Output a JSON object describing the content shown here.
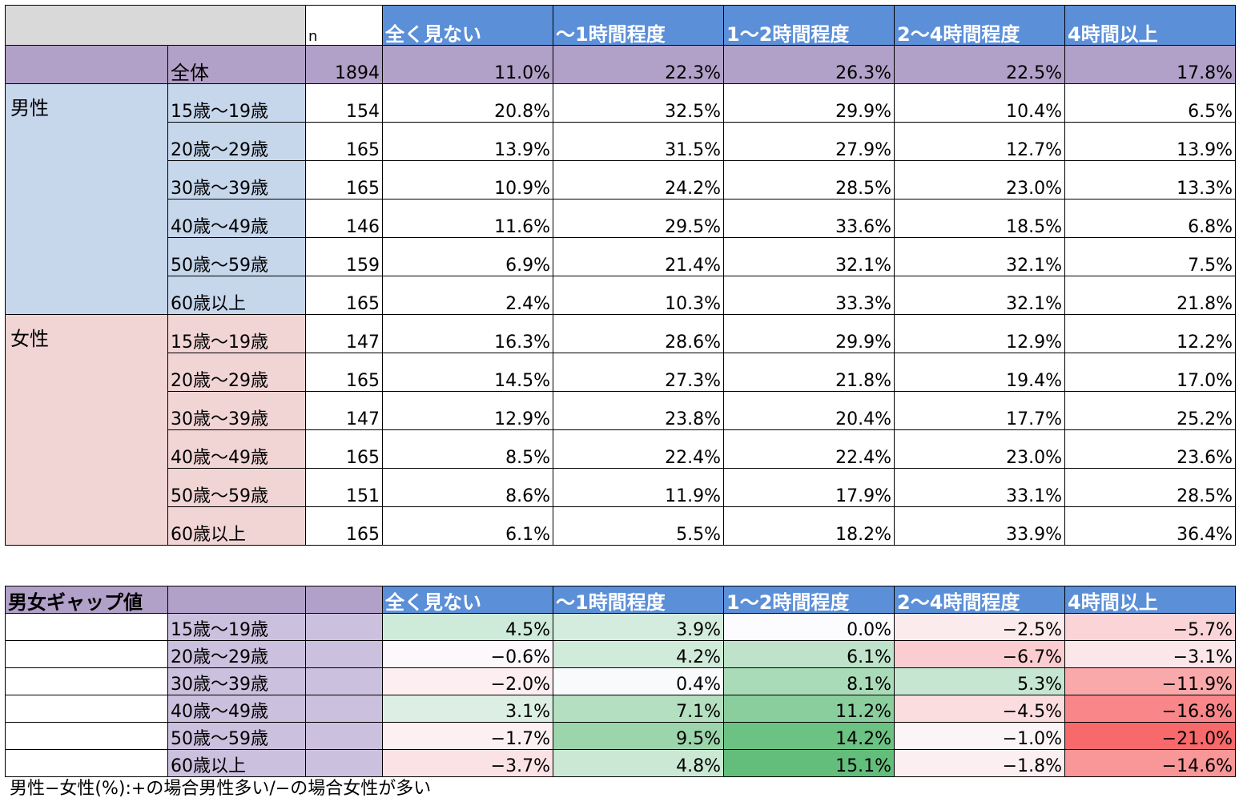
{
  "colors": {
    "blue_header": "#5b8fd8",
    "purple": "#b1a0c7",
    "purple_light": "#cbc0dd",
    "gray": "#d9d9d9",
    "male": "#c6d6eb",
    "female": "#f1d4d4",
    "gap_positive": "#63be7b",
    "gap_negative": "#f8696b"
  },
  "table1": {
    "n_label": "n",
    "columns": [
      "全く見ない",
      "～1時間程度",
      "1～2時間程度",
      "2～4時間程度",
      "4時間以上"
    ],
    "overall": {
      "label": "全体",
      "n": "1894",
      "values": [
        "11.0%",
        "22.3%",
        "26.3%",
        "22.5%",
        "17.8%"
      ]
    },
    "groups": [
      {
        "name": "男性",
        "rows": [
          {
            "age": "15歳～19歳",
            "n": "154",
            "values": [
              "20.8%",
              "32.5%",
              "29.9%",
              "10.4%",
              "6.5%"
            ]
          },
          {
            "age": "20歳～29歳",
            "n": "165",
            "values": [
              "13.9%",
              "31.5%",
              "27.9%",
              "12.7%",
              "13.9%"
            ]
          },
          {
            "age": "30歳～39歳",
            "n": "165",
            "values": [
              "10.9%",
              "24.2%",
              "28.5%",
              "23.0%",
              "13.3%"
            ]
          },
          {
            "age": "40歳～49歳",
            "n": "146",
            "values": [
              "11.6%",
              "29.5%",
              "33.6%",
              "18.5%",
              "6.8%"
            ]
          },
          {
            "age": "50歳～59歳",
            "n": "159",
            "values": [
              "6.9%",
              "21.4%",
              "32.1%",
              "32.1%",
              "7.5%"
            ]
          },
          {
            "age": "60歳以上",
            "n": "165",
            "values": [
              "2.4%",
              "10.3%",
              "33.3%",
              "32.1%",
              "21.8%"
            ]
          }
        ]
      },
      {
        "name": "女性",
        "rows": [
          {
            "age": "15歳～19歳",
            "n": "147",
            "values": [
              "16.3%",
              "28.6%",
              "29.9%",
              "12.9%",
              "12.2%"
            ]
          },
          {
            "age": "20歳～29歳",
            "n": "165",
            "values": [
              "14.5%",
              "27.3%",
              "21.8%",
              "19.4%",
              "17.0%"
            ]
          },
          {
            "age": "30歳～39歳",
            "n": "147",
            "values": [
              "12.9%",
              "23.8%",
              "20.4%",
              "17.7%",
              "25.2%"
            ]
          },
          {
            "age": "40歳～49歳",
            "n": "165",
            "values": [
              "8.5%",
              "22.4%",
              "22.4%",
              "23.0%",
              "23.6%"
            ]
          },
          {
            "age": "50歳～59歳",
            "n": "151",
            "values": [
              "8.6%",
              "11.9%",
              "17.9%",
              "33.1%",
              "28.5%"
            ]
          },
          {
            "age": "60歳以上",
            "n": "165",
            "values": [
              "6.1%",
              "5.5%",
              "18.2%",
              "33.9%",
              "36.4%"
            ]
          }
        ]
      }
    ]
  },
  "table2": {
    "title": "男女ギャップ値",
    "columns": [
      "全く見ない",
      "～1時間程度",
      "1～2時間程度",
      "2～4時間程度",
      "4時間以上"
    ],
    "rows": [
      {
        "age": "15歳～19歳",
        "values": [
          "4.5%",
          "3.9%",
          "0.0%",
          "−2.5%",
          "−5.7%"
        ]
      },
      {
        "age": "20歳～29歳",
        "values": [
          "−0.6%",
          "4.2%",
          "6.1%",
          "−6.7%",
          "−3.1%"
        ]
      },
      {
        "age": "30歳～39歳",
        "values": [
          "−2.0%",
          "0.4%",
          "8.1%",
          "5.3%",
          "−11.9%"
        ]
      },
      {
        "age": "40歳～49歳",
        "values": [
          "3.1%",
          "7.1%",
          "11.2%",
          "−4.5%",
          "−16.8%"
        ]
      },
      {
        "age": "50歳～59歳",
        "values": [
          "−1.7%",
          "9.5%",
          "14.2%",
          "−1.0%",
          "−21.0%"
        ]
      },
      {
        "age": "60歳以上",
        "values": [
          "−3.7%",
          "4.8%",
          "15.1%",
          "−1.8%",
          "−14.6%"
        ]
      }
    ]
  },
  "note": "男性−女性(%):+の場合男性多い/−の場合女性が多い"
}
